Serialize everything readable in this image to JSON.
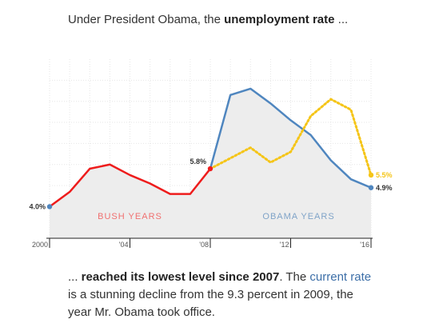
{
  "intro": {
    "part1": "Under President Obama, the ",
    "bold": "unemployment rate",
    "part2": " ..."
  },
  "outro": {
    "lead": "... ",
    "bold": "reached its lowest level since 2007",
    "part2": ". The ",
    "link": "current rate",
    "part3": " is a stunning decline from the 9.3 percent in 2009, the year Mr. Obama took office."
  },
  "chart_data": {
    "type": "line",
    "title": "",
    "xlabel": "",
    "ylabel": "",
    "xlim": [
      2000,
      2016
    ],
    "ylim": [
      2.5,
      11
    ],
    "grid": true,
    "x_ticks": [
      {
        "value": 2000,
        "label": "2000"
      },
      {
        "value": 2004,
        "label": "'04"
      },
      {
        "value": 2008,
        "label": "'08"
      },
      {
        "value": 2012,
        "label": "'12"
      },
      {
        "value": 2016,
        "label": "'16"
      }
    ],
    "eras": [
      {
        "label": "BUSH YEARS",
        "color": "#f07070",
        "x_center": 2004
      },
      {
        "label": "OBAMA YEARS",
        "color": "#7fa3c8",
        "x_center": 2012.4
      }
    ],
    "series": [
      {
        "style": "solid",
        "color": "#ee1c1c",
        "x": [
          2000,
          2001,
          2002,
          2003,
          2004,
          2005,
          2006,
          2007,
          2008
        ],
        "y": [
          4.0,
          4.7,
          5.8,
          6.0,
          5.5,
          5.1,
          4.6,
          4.6,
          5.8
        ]
      },
      {
        "style": "solid",
        "color": "#4f86bf",
        "x": [
          2008,
          2009,
          2010,
          2011,
          2012,
          2013,
          2014,
          2015,
          2016
        ],
        "y": [
          5.8,
          9.3,
          9.6,
          8.9,
          8.1,
          7.4,
          6.2,
          5.3,
          4.9
        ]
      },
      {
        "style": "dotted",
        "color": "#f5c518",
        "x": [
          2008,
          2009,
          2010,
          2011,
          2012,
          2013,
          2014,
          2015,
          2016
        ],
        "y": [
          5.8,
          6.3,
          6.8,
          6.1,
          6.6,
          8.3,
          9.1,
          8.6,
          5.5
        ]
      }
    ],
    "annotations": [
      {
        "x": 2000,
        "y": 4.0,
        "label": "4.0%",
        "color": "#333333",
        "side": "left"
      },
      {
        "x": 2008,
        "y": 5.8,
        "label": "5.8%",
        "color": "#333333",
        "side": "left"
      },
      {
        "x": 2016,
        "y": 5.5,
        "label": "5.5%",
        "color": "#f5c518",
        "side": "right"
      },
      {
        "x": 2016,
        "y": 4.9,
        "label": "4.9%",
        "color": "#333333",
        "side": "right"
      }
    ]
  }
}
